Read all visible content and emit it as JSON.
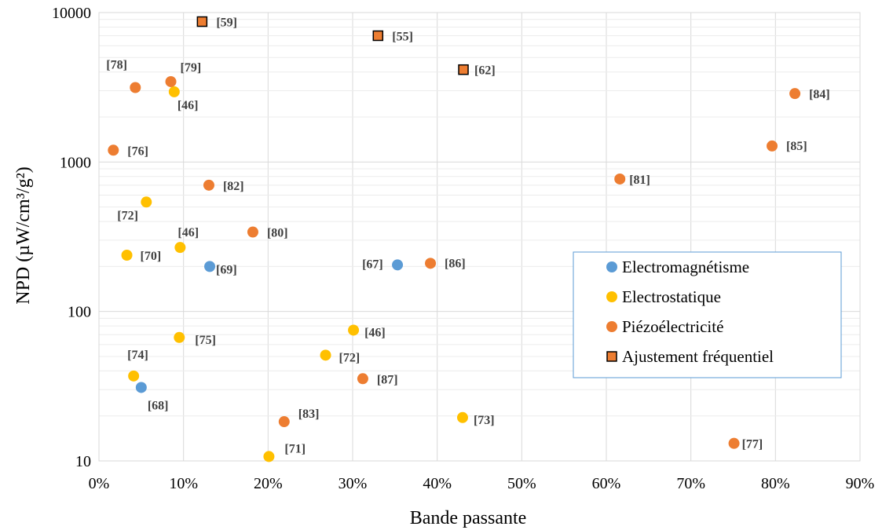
{
  "chart_data": {
    "type": "scatter",
    "xlabel": "Bande passante",
    "ylabel": "NPD (µW/cm³/g²)",
    "xlim": [
      0,
      90
    ],
    "ylim": [
      10,
      10000
    ],
    "y_scale": "log",
    "x_unit": "%",
    "grid": true,
    "legend_position": "right",
    "x_ticks": [
      "0%",
      "10%",
      "20%",
      "30%",
      "40%",
      "50%",
      "60%",
      "70%",
      "80%",
      "90%"
    ],
    "y_ticks": [
      "10",
      "100",
      "1000",
      "10000"
    ],
    "colors": {
      "Electromagnétisme": "#5B9BD5",
      "Electrostatique": "#FFC000",
      "Piézoélectricité": "#ED7D31",
      "Ajustement fréquentiel": "#ED7D31",
      "Ajustement fréquentiel_border": "#000000"
    },
    "series": [
      {
        "name": "Electromagnétisme",
        "marker": "circle",
        "points": [
          {
            "x": 13.1,
            "y": 200,
            "label": "[69]"
          },
          {
            "x": 35.3,
            "y": 205,
            "label": "[67]"
          },
          {
            "x": 5.0,
            "y": 31,
            "label": "[68]"
          }
        ]
      },
      {
        "name": "Electrostatique",
        "marker": "circle",
        "points": [
          {
            "x": 8.9,
            "y": 2950,
            "label": "[46]"
          },
          {
            "x": 5.6,
            "y": 540,
            "label": "[72]"
          },
          {
            "x": 9.6,
            "y": 268,
            "label": "[46]"
          },
          {
            "x": 3.3,
            "y": 238,
            "label": "[70]"
          },
          {
            "x": 9.5,
            "y": 67,
            "label": "[75]"
          },
          {
            "x": 30.1,
            "y": 75,
            "label": "[46]"
          },
          {
            "x": 26.8,
            "y": 51,
            "label": "[72]"
          },
          {
            "x": 4.1,
            "y": 37,
            "label": "[74]"
          },
          {
            "x": 43.0,
            "y": 19.5,
            "label": "[73]"
          },
          {
            "x": 20.1,
            "y": 10.7,
            "label": "[71]"
          }
        ]
      },
      {
        "name": "Piézoélectricité",
        "marker": "circle",
        "points": [
          {
            "x": 4.3,
            "y": 3150,
            "label": "[78]"
          },
          {
            "x": 8.5,
            "y": 3450,
            "label": "[79]"
          },
          {
            "x": 1.7,
            "y": 1200,
            "label": "[76]"
          },
          {
            "x": 13.0,
            "y": 700,
            "label": "[82]"
          },
          {
            "x": 18.2,
            "y": 340,
            "label": "[80]"
          },
          {
            "x": 39.2,
            "y": 210,
            "label": "[86]"
          },
          {
            "x": 31.2,
            "y": 35.5,
            "label": "[87]"
          },
          {
            "x": 21.9,
            "y": 18.3,
            "label": "[83]"
          },
          {
            "x": 61.6,
            "y": 770,
            "label": "[81]"
          },
          {
            "x": 79.6,
            "y": 1280,
            "label": "[85]"
          },
          {
            "x": 82.3,
            "y": 2870,
            "label": "[84]"
          },
          {
            "x": 75.1,
            "y": 13.1,
            "label": "[77]"
          }
        ]
      },
      {
        "name": "Ajustement fréquentiel",
        "marker": "square",
        "points": [
          {
            "x": 12.2,
            "y": 8700,
            "label": "[59]"
          },
          {
            "x": 33.0,
            "y": 7000,
            "label": "[55]"
          },
          {
            "x": 43.1,
            "y": 4150,
            "label": "[62]"
          }
        ]
      }
    ]
  }
}
